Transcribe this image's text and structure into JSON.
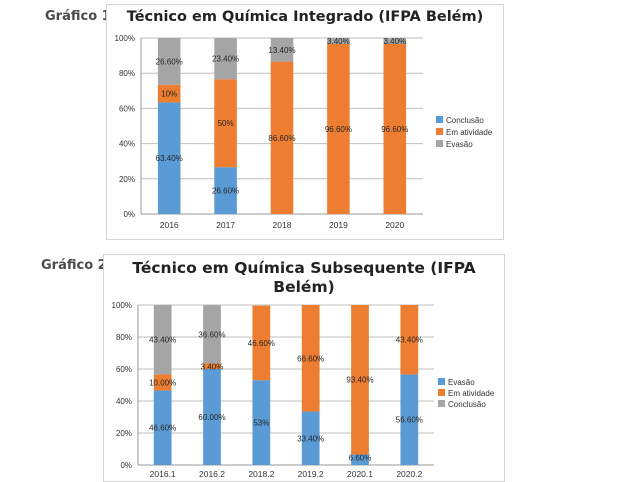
{
  "figure_labels": [
    "Gráfico 1",
    "Gráfico 2"
  ],
  "chart_data": [
    {
      "type": "bar",
      "stacked": true,
      "title": "Técnico em Química Integrado (IFPA Belém)",
      "categories": [
        "2016",
        "2017",
        "2018",
        "2019",
        "2020"
      ],
      "series": [
        {
          "name": "Conclusão",
          "color": "#5b9bd5",
          "values": [
            63.4,
            26.6,
            0,
            0,
            0
          ],
          "labels": [
            "63.40%",
            "26.60%",
            "",
            "",
            ""
          ]
        },
        {
          "name": "Em atividade",
          "color": "#ed7d31",
          "values": [
            10,
            50,
            86.6,
            96.6,
            96.6
          ],
          "labels": [
            "10%",
            "50%",
            "86.60%",
            "96.60%",
            "96.60%"
          ]
        },
        {
          "name": "Evasão",
          "color": "#a5a5a5",
          "values": [
            26.6,
            23.4,
            13.4,
            3.4,
            3.4
          ],
          "labels": [
            "26.60%",
            "23.40%",
            "13.40%",
            "3.40%",
            "3.40%"
          ]
        }
      ],
      "yticks": [
        "0%",
        "20%",
        "40%",
        "60%",
        "80%",
        "100%"
      ],
      "ylim": [
        0,
        100
      ],
      "grid": true,
      "legend": "right"
    },
    {
      "type": "bar",
      "stacked": true,
      "title": "Técnico em Química Subsequente (IFPA Belém)",
      "title_lines": [
        "Técnico em Química Subsequente (IFPA",
        "Belém)"
      ],
      "categories": [
        "2016.1",
        "2016.2",
        "2018.2",
        "2019.2",
        "2020.1",
        "2020.2"
      ],
      "series": [
        {
          "name": "Evasão",
          "color": "#5b9bd5",
          "values": [
            46.6,
            60,
            53,
            33.4,
            6.6,
            56.6
          ],
          "labels": [
            "46.60%",
            "60.00%",
            "53%",
            "33.40%",
            "6.60%",
            "56.60%"
          ]
        },
        {
          "name": "Em atividade",
          "color": "#ed7d31",
          "values": [
            10,
            3.4,
            46.6,
            66.6,
            93.4,
            43.4
          ],
          "labels": [
            "10.00%",
            "3.40%",
            "46.60%",
            "66.60%",
            "93.40%",
            "43.40%"
          ]
        },
        {
          "name": "Conclusão",
          "color": "#a5a5a5",
          "values": [
            43.4,
            36.6,
            0,
            0,
            0,
            0
          ],
          "labels": [
            "43.40%",
            "36.60%",
            "",
            "",
            "",
            ""
          ]
        }
      ],
      "yticks": [
        "0%",
        "20%",
        "40%",
        "60%",
        "80%",
        "100%"
      ],
      "ylim": [
        0,
        100
      ],
      "grid": true,
      "legend": "right"
    }
  ]
}
